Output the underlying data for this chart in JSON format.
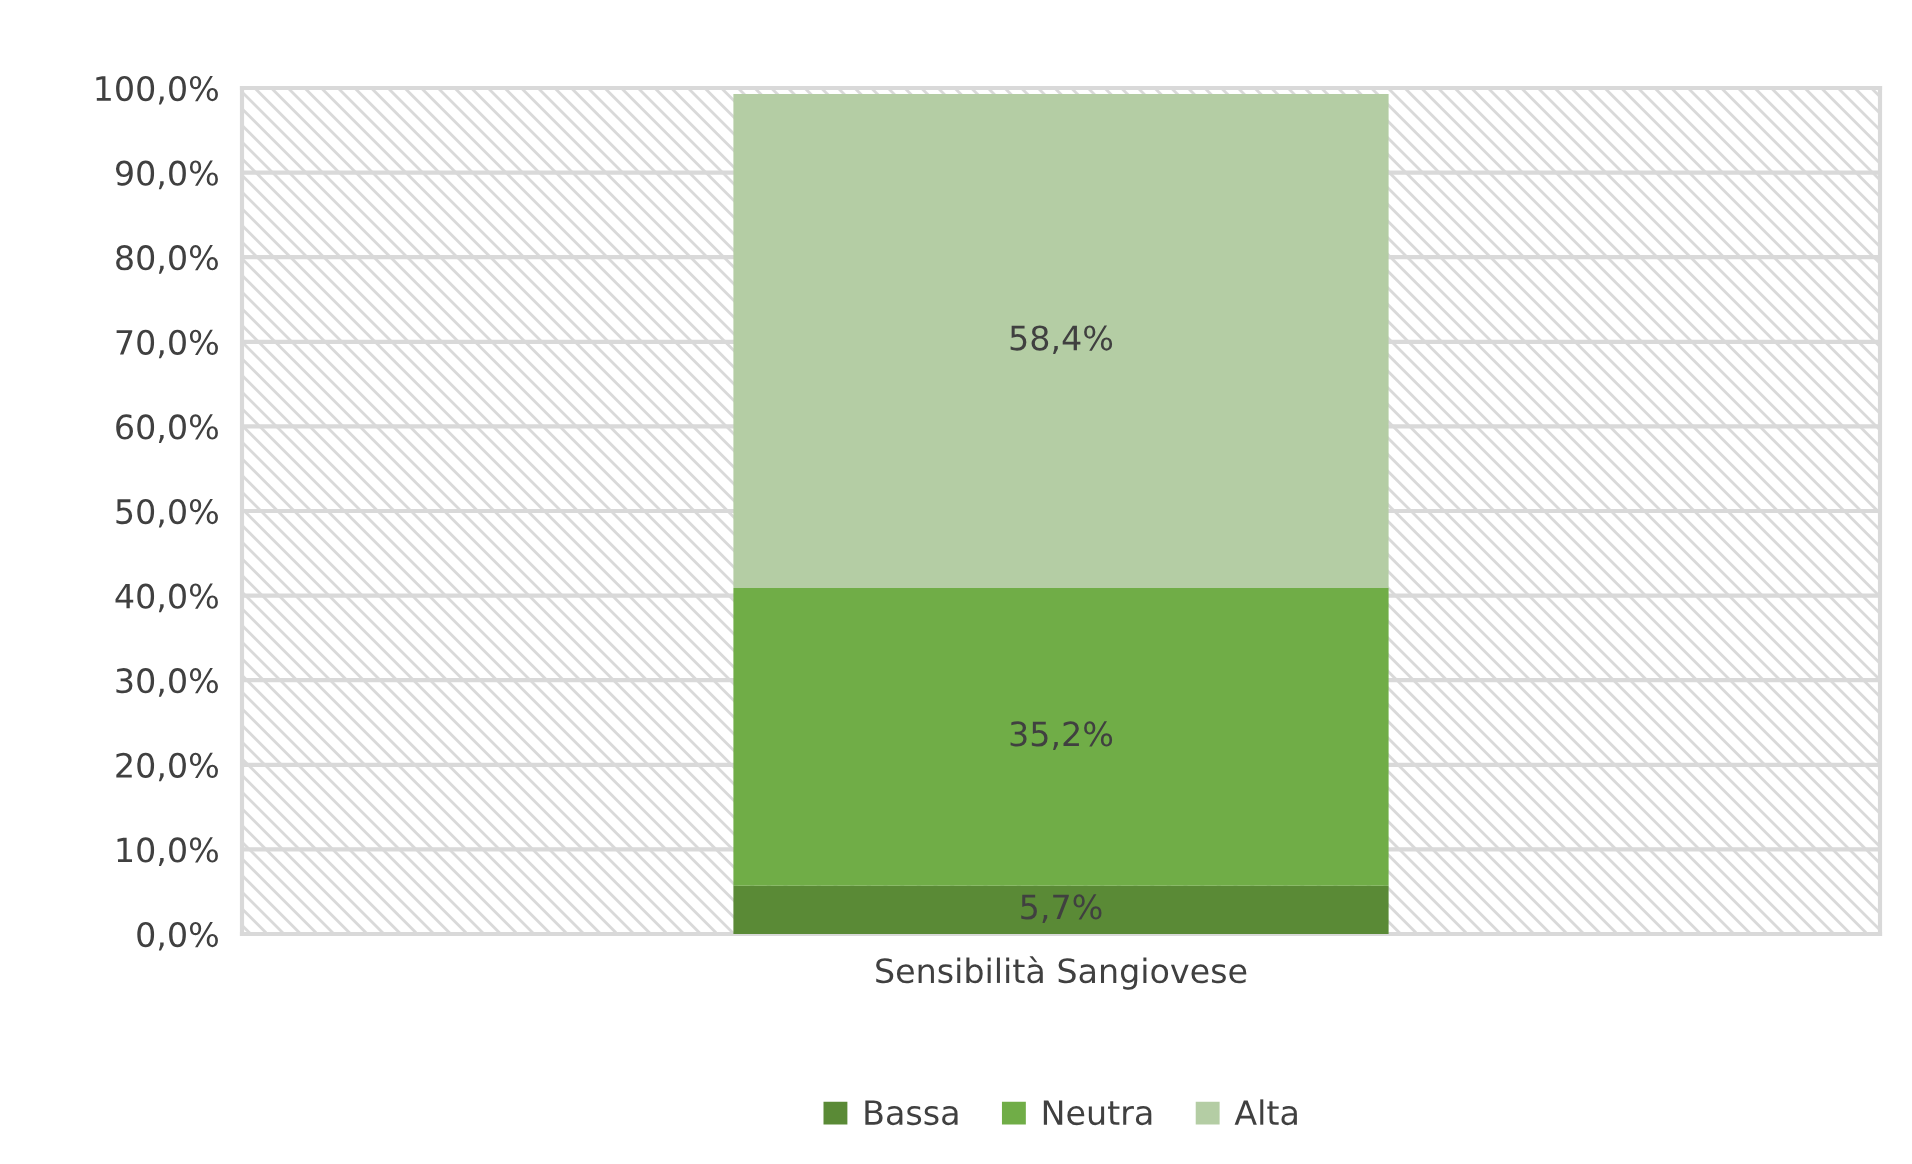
{
  "chart_data": {
    "type": "bar",
    "stacked": true,
    "categories": [
      "Sensibilità Sangiovese"
    ],
    "series": [
      {
        "name": "Bassa",
        "color": "#5a8a36",
        "values": [
          5.7
        ],
        "value_labels": [
          "5,7%"
        ]
      },
      {
        "name": "Neutra",
        "color": "#70ad47",
        "values": [
          35.2
        ],
        "value_labels": [
          "35,2%"
        ]
      },
      {
        "name": "Alta",
        "color": "#b4cda4",
        "values": [
          58.4
        ],
        "value_labels": [
          "58,4%"
        ]
      }
    ],
    "ylim": [
      0,
      100
    ],
    "yticks": [
      {
        "value": 0,
        "label": "0,0%"
      },
      {
        "value": 10,
        "label": "10,0%"
      },
      {
        "value": 20,
        "label": "20,0%"
      },
      {
        "value": 30,
        "label": "30,0%"
      },
      {
        "value": 40,
        "label": "40,0%"
      },
      {
        "value": 50,
        "label": "50,0%"
      },
      {
        "value": 60,
        "label": "60,0%"
      },
      {
        "value": 70,
        "label": "70,0%"
      },
      {
        "value": 80,
        "label": "80,0%"
      },
      {
        "value": 90,
        "label": "90,0%"
      },
      {
        "value": 100,
        "label": "100,0%"
      }
    ],
    "grid": "y",
    "legend": "bottom"
  }
}
